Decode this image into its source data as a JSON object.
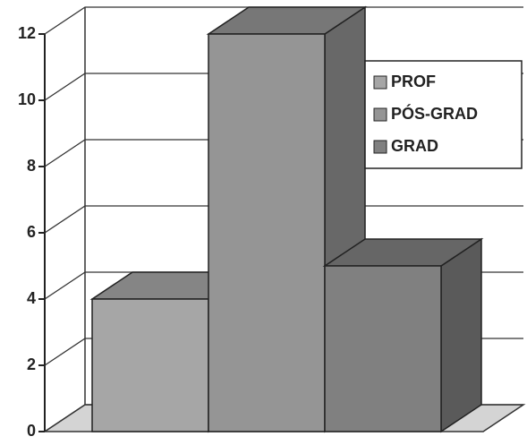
{
  "chart_data": {
    "type": "bar3d",
    "series": [
      {
        "name": "PROF",
        "color": "#a6a6a6",
        "values": [
          4
        ]
      },
      {
        "name": "PÓS-GRAD",
        "color": "#959595",
        "values": [
          12
        ]
      },
      {
        "name": "GRAD",
        "color": "#808080",
        "values": [
          5
        ]
      }
    ],
    "ylim": [
      0,
      12
    ],
    "yticks": [
      0,
      2,
      4,
      6,
      8,
      10,
      12
    ],
    "grid": true,
    "legend": "upper right"
  }
}
